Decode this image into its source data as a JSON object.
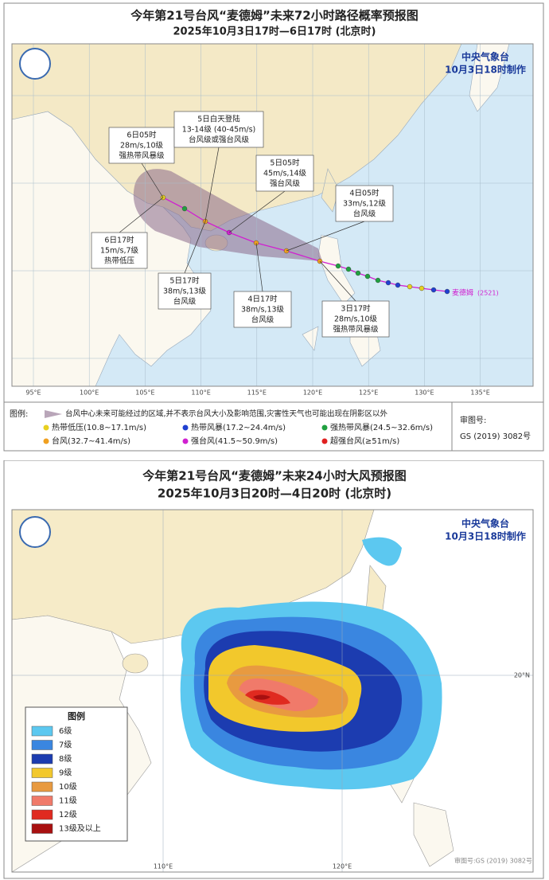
{
  "track_map": {
    "title": "今年第21号台风“麦德姆”未来72小时路径概率预报图",
    "subtitle": "2025年10月3日17时—6日17时 (北京时)",
    "agency": "中央气象台",
    "made_time": "10月3日18时制作",
    "annotations": [
      [
        "6日05时",
        "28m/s,10级",
        "强热带风暴级"
      ],
      [
        "5日白天登陆",
        "13-14级 (40-45m/s)",
        "台风级或强台风级"
      ],
      [
        "5日05时",
        "45m/s,14级",
        "强台风级"
      ],
      [
        "4日05时",
        "33m/s,12级",
        "台风级"
      ],
      [
        "6日17时",
        "15m/s,7级",
        "热带低压"
      ],
      [
        "5日17时",
        "38m/s,13级",
        "台风级"
      ],
      [
        "4日17时",
        "38m/s,13级",
        "台风级"
      ],
      [
        "3日17时",
        "28m/s,10级",
        "强热带风暴级"
      ]
    ],
    "typhoon_label": "麦德姆",
    "typhoon_id": "(2521)",
    "lon_labels": [
      "95°E",
      "100°E",
      "105°E",
      "110°E",
      "115°E",
      "120°E",
      "125°E",
      "130°E",
      "135°E"
    ],
    "legend": {
      "heading": "图例:",
      "note": "台风中心未来可能经过的区域,并不表示台风大小及影响范围,灾害性天气也可能出现在阴影区以外",
      "items": [
        {
          "label": "热带低压(10.8~17.1m/s)",
          "color": "#e8d020"
        },
        {
          "label": "热带风暴(17.2~24.4m/s)",
          "color": "#2040d0"
        },
        {
          "label": "强热带风暴(24.5~32.6m/s)",
          "color": "#20a040"
        },
        {
          "label": "台风(32.7~41.4m/s)",
          "color": "#f0a020"
        },
        {
          "label": "强台风(41.5~50.9m/s)",
          "color": "#d020d0"
        },
        {
          "label": "超强台风(≥51m/s)",
          "color": "#e02020"
        }
      ]
    },
    "review_label": "审图号:",
    "review_number": "GS (2019) 3082号"
  },
  "wind_map": {
    "title": "今年第21号台风“麦德姆”未来24小时大风预报图",
    "subtitle": "2025年10月3日20时—4日20时 (北京时)",
    "agency": "中央气象台",
    "made_time": "10月3日18时制作",
    "lon_labels": [
      "110°E",
      "120°E"
    ],
    "lat_labels": [
      "20°N"
    ],
    "legend": {
      "heading": "图例",
      "items": [
        {
          "label": "6级",
          "color": "#5cc8f0"
        },
        {
          "label": "7级",
          "color": "#3a86e0"
        },
        {
          "label": "8级",
          "color": "#1c3cb0"
        },
        {
          "label": "9级",
          "color": "#f2c82c"
        },
        {
          "label": "10级",
          "color": "#e89a40"
        },
        {
          "label": "11级",
          "color": "#f07a6a"
        },
        {
          "label": "12级",
          "color": "#e02a20"
        },
        {
          "label": "13级及以上",
          "color": "#a81010"
        }
      ]
    },
    "review": "审图号:GS (2019) 3082号"
  }
}
